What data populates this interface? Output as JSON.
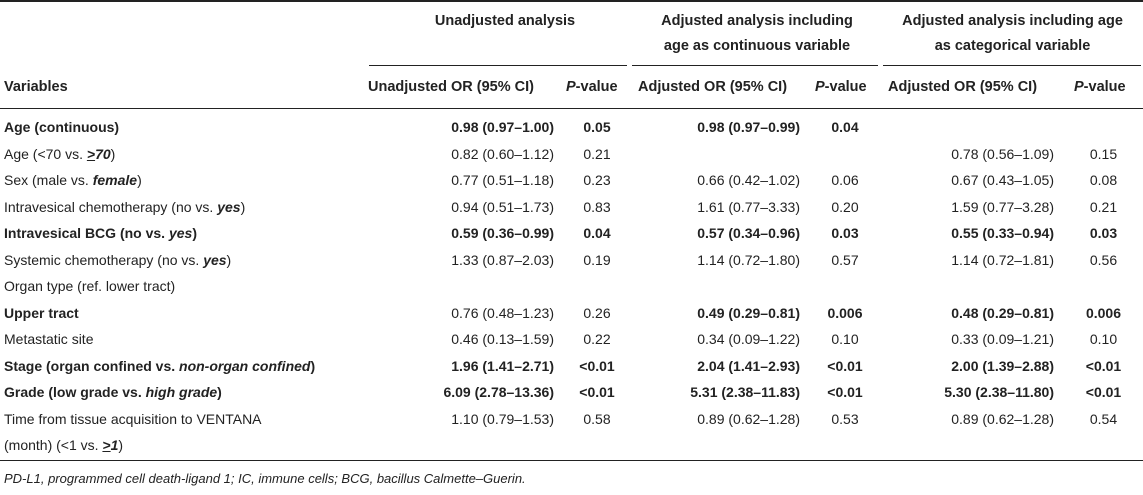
{
  "header": {
    "groups": {
      "unadjusted": "Unadjusted analysis",
      "adj_cont_line1": "Adjusted analysis including",
      "adj_cont_line2": "age as continuous variable",
      "adj_cat_line1": "Adjusted analysis including age",
      "adj_cat_line2": "as categorical variable"
    },
    "columns": {
      "variables": "Variables",
      "unadj_or": "Unadjusted OR (95% CI)",
      "adj_or_1": "Adjusted OR (95% CI)",
      "adj_or_2": "Adjusted OR (95% CI)",
      "p_letter": "P",
      "p_suffix": "-value"
    }
  },
  "rows": [
    {
      "var_pre": "Age (continuous)",
      "var_em": "",
      "var_post": "",
      "u_or": "0.98 (0.97–1.00)",
      "u_p": "0.05",
      "ac_or": "0.98 (0.97–0.99)",
      "ac_p": "0.04",
      "ak_or": "",
      "ak_p": "",
      "bold": true
    },
    {
      "var_pre": "Age (<70 vs. ",
      "var_em": "≥70",
      "var_post": ")",
      "u_or": "0.82 (0.60–1.12)",
      "u_p": "0.21",
      "ac_or": "",
      "ac_p": "",
      "ak_or": "0.78 (0.56–1.09)",
      "ak_p": "0.15",
      "bold": false
    },
    {
      "var_pre": "Sex (male vs. ",
      "var_em": "female",
      "var_post": ")",
      "u_or": "0.77 (0.51–1.18)",
      "u_p": "0.23",
      "ac_or": "0.66 (0.42–1.02)",
      "ac_p": "0.06",
      "ak_or": "0.67 (0.43–1.05)",
      "ak_p": "0.08",
      "bold": false
    },
    {
      "var_pre": "Intravesical chemotherapy (no vs. ",
      "var_em": "yes",
      "var_post": ")",
      "u_or": "0.94 (0.51–1.73)",
      "u_p": "0.83",
      "ac_or": "1.61 (0.77–3.33)",
      "ac_p": "0.20",
      "ak_or": "1.59 (0.77–3.28)",
      "ak_p": "0.21",
      "bold": false
    },
    {
      "var_pre": "Intravesical BCG (no vs. ",
      "var_em": "yes",
      "var_post": ")",
      "u_or": "0.59 (0.36–0.99)",
      "u_p": "0.04",
      "ac_or": "0.57 (0.34–0.96)",
      "ac_p": "0.03",
      "ak_or": "0.55 (0.33–0.94)",
      "ak_p": "0.03",
      "bold": true
    },
    {
      "var_pre": "Systemic chemotherapy (no vs. ",
      "var_em": "yes",
      "var_post": ")",
      "u_or": "1.33 (0.87–2.03)",
      "u_p": "0.19",
      "ac_or": "1.14 (0.72–1.80)",
      "ac_p": "0.57",
      "ak_or": "1.14 (0.72–1.81)",
      "ak_p": "0.56",
      "bold": false
    },
    {
      "var_pre": "Organ type (ref. lower tract)",
      "var_em": "",
      "var_post": "",
      "u_or": "",
      "u_p": "",
      "ac_or": "",
      "ac_p": "",
      "ak_or": "",
      "ak_p": "",
      "bold": false
    },
    {
      "var_pre": "Upper tract",
      "var_em": "",
      "var_post": "",
      "u_or": "0.76 (0.48–1.23)",
      "u_p": "0.26",
      "ac_or": "0.49 (0.29–0.81)",
      "ac_p": "0.006",
      "ak_or": "0.48 (0.29–0.81)",
      "ak_p": "0.006",
      "bold": true,
      "partial_bold": true
    },
    {
      "var_pre": "Metastatic site",
      "var_em": "",
      "var_post": "",
      "u_or": "0.46 (0.13–1.59)",
      "u_p": "0.22",
      "ac_or": "0.34 (0.09–1.22)",
      "ac_p": "0.10",
      "ak_or": "0.33 (0.09–1.21)",
      "ak_p": "0.10",
      "bold": false
    },
    {
      "var_pre": "Stage (organ confined vs. ",
      "var_em": "non-organ confined",
      "var_post": ")",
      "u_or": "1.96 (1.41–2.71)",
      "u_p": "<0.01",
      "ac_or": "2.04 (1.41–2.93)",
      "ac_p": "<0.01",
      "ak_or": "2.00 (1.39–2.88)",
      "ak_p": "<0.01",
      "bold": true
    },
    {
      "var_pre": "Grade (low grade vs. ",
      "var_em": "high grade",
      "var_post": ")",
      "u_or": "6.09 (2.78–13.36)",
      "u_p": "<0.01",
      "ac_or": "5.31 (2.38–11.83)",
      "ac_p": "<0.01",
      "ak_or": "5.30 (2.38–11.80)",
      "ak_p": "<0.01",
      "bold": true
    },
    {
      "var_pre": "Time from tissue acquisition to VENTANA",
      "var_em": "",
      "var_post": "",
      "u_or": "1.10 (0.79–1.53)",
      "u_p": "0.58",
      "ac_or": "0.89 (0.62–1.28)",
      "ac_p": "0.53",
      "ak_or": "0.89 (0.62–1.28)",
      "ak_p": "0.54",
      "bold": false
    },
    {
      "var_pre": "(month) (<1 vs. ",
      "var_em": "≥1",
      "var_post": ")",
      "u_or": "",
      "u_p": "",
      "ac_or": "",
      "ac_p": "",
      "ak_or": "",
      "ak_p": "",
      "bold": false
    }
  ],
  "footnote": "PD-L1, programmed cell death-ligand 1; IC, immune cells; BCG, bacillus Calmette–Guerin."
}
